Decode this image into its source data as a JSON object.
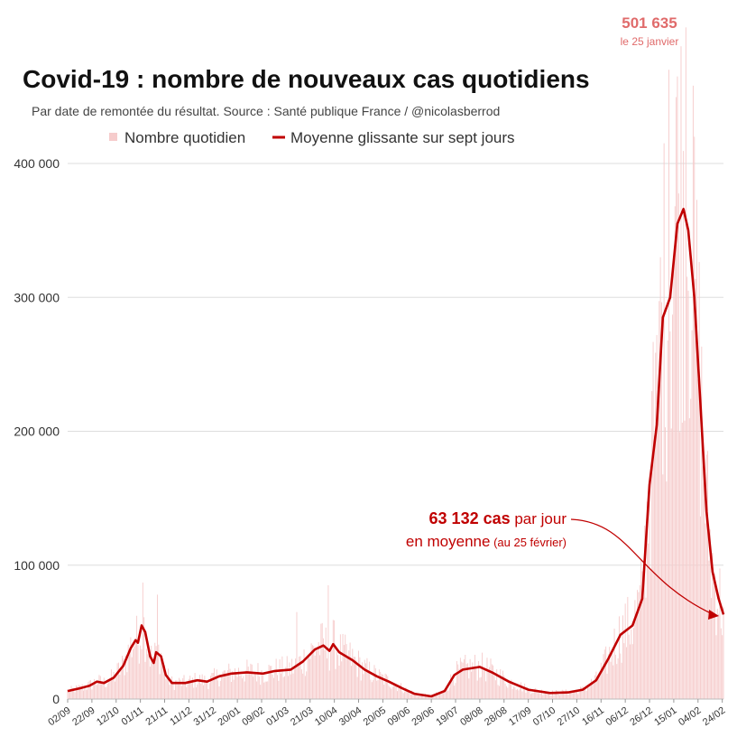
{
  "chart_data": {
    "type": "bar",
    "title": "Covid-19 : nombre de nouveaux cas quotidiens",
    "subtitle": "Par date de remontée du résultat. Source : Santé publique France / @nicolasberrod",
    "legend": {
      "placement": "top",
      "daily_label": "Nombre quotidien",
      "avg_label": "Moyenne glissante sur sept jours"
    },
    "colors": {
      "bars": "#f6cccc",
      "line": "#c00000",
      "peak": "#e06b6b",
      "grid": "#dddddd"
    },
    "grid": true,
    "ylim": [
      0,
      400000
    ],
    "yticks": [
      {
        "value": 0,
        "label": "0"
      },
      {
        "value": 100000,
        "label": "100 000"
      },
      {
        "value": 200000,
        "label": "200 000"
      },
      {
        "value": 300000,
        "label": "300 000"
      },
      {
        "value": 400000,
        "label": "400 000"
      }
    ],
    "x_range": [
      "2020-09-02",
      "2022-02-25"
    ],
    "xticks": [
      {
        "date": "2020-09-02",
        "label": "02/09"
      },
      {
        "date": "2020-09-22",
        "label": "22/09"
      },
      {
        "date": "2020-10-12",
        "label": "12/10"
      },
      {
        "date": "2020-11-01",
        "label": "01/11"
      },
      {
        "date": "2020-11-21",
        "label": "21/11"
      },
      {
        "date": "2020-12-11",
        "label": "11/12"
      },
      {
        "date": "2020-12-31",
        "label": "31/12"
      },
      {
        "date": "2021-01-20",
        "label": "20/01"
      },
      {
        "date": "2021-02-09",
        "label": "09/02"
      },
      {
        "date": "2021-03-01",
        "label": "01/03"
      },
      {
        "date": "2021-03-21",
        "label": "21/03"
      },
      {
        "date": "2021-04-10",
        "label": "10/04"
      },
      {
        "date": "2021-04-30",
        "label": "30/04"
      },
      {
        "date": "2021-05-20",
        "label": "20/05"
      },
      {
        "date": "2021-06-09",
        "label": "09/06"
      },
      {
        "date": "2021-06-29",
        "label": "29/06"
      },
      {
        "date": "2021-07-19",
        "label": "19/07"
      },
      {
        "date": "2021-08-08",
        "label": "08/08"
      },
      {
        "date": "2021-08-28",
        "label": "28/08"
      },
      {
        "date": "2021-09-17",
        "label": "17/09"
      },
      {
        "date": "2021-10-07",
        "label": "07/10"
      },
      {
        "date": "2021-10-27",
        "label": "27/10"
      },
      {
        "date": "2021-11-16",
        "label": "16/11"
      },
      {
        "date": "2021-12-06",
        "label": "06/12"
      },
      {
        "date": "2021-12-26",
        "label": "26/12"
      },
      {
        "date": "2022-01-15",
        "label": "15/01"
      },
      {
        "date": "2022-02-04",
        "label": "04/02"
      },
      {
        "date": "2022-02-24",
        "label": "24/02"
      }
    ],
    "moving_average": [
      {
        "date": "2020-09-02",
        "value": 6000
      },
      {
        "date": "2020-09-12",
        "value": 8000
      },
      {
        "date": "2020-09-20",
        "value": 10000
      },
      {
        "date": "2020-09-26",
        "value": 13000
      },
      {
        "date": "2020-10-02",
        "value": 12000
      },
      {
        "date": "2020-10-10",
        "value": 16000
      },
      {
        "date": "2020-10-18",
        "value": 25000
      },
      {
        "date": "2020-10-24",
        "value": 38000
      },
      {
        "date": "2020-10-28",
        "value": 44000
      },
      {
        "date": "2020-10-30",
        "value": 42000
      },
      {
        "date": "2020-11-02",
        "value": 55000
      },
      {
        "date": "2020-11-05",
        "value": 50000
      },
      {
        "date": "2020-11-09",
        "value": 32000
      },
      {
        "date": "2020-11-12",
        "value": 27000
      },
      {
        "date": "2020-11-14",
        "value": 35000
      },
      {
        "date": "2020-11-18",
        "value": 32000
      },
      {
        "date": "2020-11-22",
        "value": 18000
      },
      {
        "date": "2020-11-27",
        "value": 12000
      },
      {
        "date": "2020-12-08",
        "value": 12000
      },
      {
        "date": "2020-12-18",
        "value": 14000
      },
      {
        "date": "2020-12-26",
        "value": 13000
      },
      {
        "date": "2021-01-05",
        "value": 17000
      },
      {
        "date": "2021-01-15",
        "value": 19000
      },
      {
        "date": "2021-01-28",
        "value": 20000
      },
      {
        "date": "2021-02-10",
        "value": 19000
      },
      {
        "date": "2021-02-20",
        "value": 21000
      },
      {
        "date": "2021-03-05",
        "value": 22000
      },
      {
        "date": "2021-03-15",
        "value": 28000
      },
      {
        "date": "2021-03-25",
        "value": 37000
      },
      {
        "date": "2021-04-01",
        "value": 40000
      },
      {
        "date": "2021-04-06",
        "value": 36000
      },
      {
        "date": "2021-04-09",
        "value": 41000
      },
      {
        "date": "2021-04-14",
        "value": 35000
      },
      {
        "date": "2021-04-25",
        "value": 29000
      },
      {
        "date": "2021-05-05",
        "value": 22000
      },
      {
        "date": "2021-05-15",
        "value": 17000
      },
      {
        "date": "2021-05-25",
        "value": 13000
      },
      {
        "date": "2021-06-05",
        "value": 8000
      },
      {
        "date": "2021-06-15",
        "value": 4000
      },
      {
        "date": "2021-06-29",
        "value": 2000
      },
      {
        "date": "2021-07-10",
        "value": 6000
      },
      {
        "date": "2021-07-18",
        "value": 18000
      },
      {
        "date": "2021-07-25",
        "value": 22000
      },
      {
        "date": "2021-08-08",
        "value": 24000
      },
      {
        "date": "2021-08-18",
        "value": 20000
      },
      {
        "date": "2021-09-01",
        "value": 13000
      },
      {
        "date": "2021-09-17",
        "value": 7000
      },
      {
        "date": "2021-10-05",
        "value": 4500
      },
      {
        "date": "2021-10-20",
        "value": 5000
      },
      {
        "date": "2021-11-01",
        "value": 7000
      },
      {
        "date": "2021-11-12",
        "value": 14000
      },
      {
        "date": "2021-11-22",
        "value": 30000
      },
      {
        "date": "2021-12-02",
        "value": 48000
      },
      {
        "date": "2021-12-12",
        "value": 55000
      },
      {
        "date": "2021-12-20",
        "value": 75000
      },
      {
        "date": "2021-12-26",
        "value": 160000
      },
      {
        "date": "2022-01-01",
        "value": 205000
      },
      {
        "date": "2022-01-06",
        "value": 285000
      },
      {
        "date": "2022-01-12",
        "value": 300000
      },
      {
        "date": "2022-01-18",
        "value": 355000
      },
      {
        "date": "2022-01-23",
        "value": 366000
      },
      {
        "date": "2022-01-27",
        "value": 350000
      },
      {
        "date": "2022-02-01",
        "value": 300000
      },
      {
        "date": "2022-02-06",
        "value": 220000
      },
      {
        "date": "2022-02-11",
        "value": 140000
      },
      {
        "date": "2022-02-16",
        "value": 95000
      },
      {
        "date": "2022-02-21",
        "value": 75000
      },
      {
        "date": "2022-02-25",
        "value": 63132
      }
    ],
    "spikes": [
      {
        "date": "2020-11-03",
        "value": 87000
      },
      {
        "date": "2020-11-15",
        "value": 78000
      },
      {
        "date": "2021-03-10",
        "value": 65000
      },
      {
        "date": "2021-04-05",
        "value": 85000
      },
      {
        "date": "2021-12-28",
        "value": 230000
      },
      {
        "date": "2022-01-04",
        "value": 330000
      },
      {
        "date": "2022-01-11",
        "value": 470000
      },
      {
        "date": "2022-01-18",
        "value": 465000
      },
      {
        "date": "2022-01-25",
        "value": 501635
      },
      {
        "date": "2022-02-01",
        "value": 420000
      }
    ],
    "annotations": {
      "peak": {
        "value_text": "501 635",
        "date_text": "le 25 janvier"
      },
      "latest": {
        "value_text": "63 132 cas",
        "per_day_text": " par jour",
        "avg_text": "en moyenne",
        "date_text": " (au 25 février)"
      }
    }
  }
}
